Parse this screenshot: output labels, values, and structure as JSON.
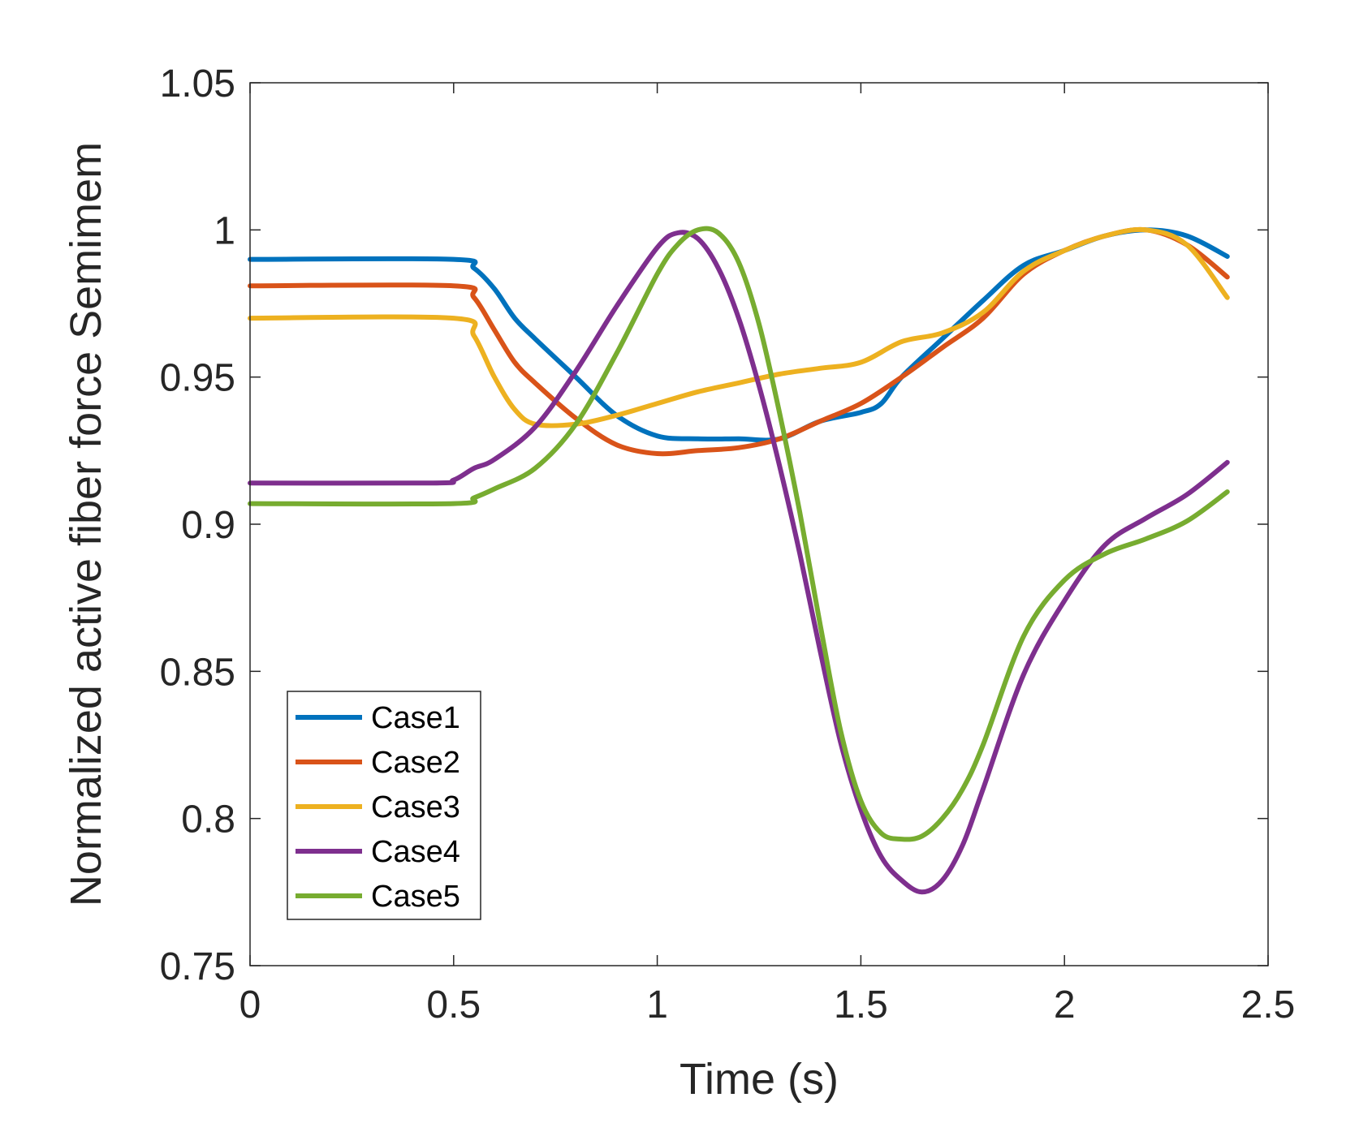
{
  "chart_data": {
    "type": "line",
    "title": "",
    "xlabel": "Time (s)",
    "ylabel": "Normalized active fiber force  Semimem",
    "xlim": [
      0,
      2.5
    ],
    "ylim": [
      0.75,
      1.05
    ],
    "xticks": [
      0,
      0.5,
      1,
      1.5,
      2,
      2.5
    ],
    "xtick_labels": [
      "0",
      "0.5",
      "1",
      "1.5",
      "2",
      "2.5"
    ],
    "yticks": [
      0.75,
      0.8,
      0.85,
      0.9,
      0.95,
      1,
      1.05
    ],
    "ytick_labels": [
      "0.75",
      "0.8",
      "0.85",
      "0.9",
      "0.95",
      "1",
      "1.05"
    ],
    "grid": false,
    "legend_position": "bottom-left",
    "series": [
      {
        "name": "Case1",
        "color": "#0072BD",
        "x": [
          0,
          0.5,
          0.55,
          0.6,
          0.65,
          0.7,
          0.8,
          0.9,
          1.0,
          1.1,
          1.2,
          1.3,
          1.4,
          1.5,
          1.55,
          1.6,
          1.7,
          1.8,
          1.9,
          2.0,
          2.1,
          2.2,
          2.3,
          2.4
        ],
        "y": [
          0.99,
          0.99,
          0.987,
          0.98,
          0.97,
          0.963,
          0.95,
          0.937,
          0.93,
          0.929,
          0.929,
          0.929,
          0.935,
          0.938,
          0.941,
          0.95,
          0.963,
          0.976,
          0.988,
          0.993,
          0.998,
          1.0,
          0.998,
          0.991
        ]
      },
      {
        "name": "Case2",
        "color": "#D95319",
        "x": [
          0,
          0.5,
          0.55,
          0.6,
          0.65,
          0.7,
          0.8,
          0.9,
          1.0,
          1.1,
          1.2,
          1.3,
          1.4,
          1.5,
          1.6,
          1.7,
          1.8,
          1.9,
          2.0,
          2.1,
          2.2,
          2.3,
          2.4
        ],
        "y": [
          0.981,
          0.981,
          0.977,
          0.966,
          0.955,
          0.948,
          0.936,
          0.927,
          0.924,
          0.925,
          0.926,
          0.929,
          0.935,
          0.941,
          0.95,
          0.96,
          0.97,
          0.985,
          0.993,
          0.998,
          1.0,
          0.995,
          0.984
        ]
      },
      {
        "name": "Case3",
        "color": "#EDB120",
        "x": [
          0,
          0.5,
          0.55,
          0.6,
          0.65,
          0.7,
          0.8,
          0.9,
          1.0,
          1.1,
          1.2,
          1.3,
          1.4,
          1.5,
          1.6,
          1.7,
          1.8,
          1.9,
          2.0,
          2.1,
          2.2,
          2.3,
          2.4
        ],
        "y": [
          0.97,
          0.97,
          0.964,
          0.95,
          0.939,
          0.934,
          0.934,
          0.937,
          0.941,
          0.945,
          0.948,
          0.951,
          0.953,
          0.955,
          0.962,
          0.965,
          0.972,
          0.986,
          0.993,
          0.998,
          1.0,
          0.995,
          0.977
        ]
      },
      {
        "name": "Case4",
        "color": "#7E2F8E",
        "x": [
          0,
          0.45,
          0.5,
          0.55,
          0.6,
          0.7,
          0.8,
          0.9,
          1.0,
          1.05,
          1.1,
          1.15,
          1.2,
          1.25,
          1.3,
          1.35,
          1.4,
          1.45,
          1.5,
          1.55,
          1.6,
          1.65,
          1.7,
          1.75,
          1.8,
          1.9,
          2.0,
          2.1,
          2.2,
          2.3,
          2.4
        ],
        "y": [
          0.914,
          0.914,
          0.915,
          0.919,
          0.922,
          0.933,
          0.952,
          0.974,
          0.994,
          0.999,
          0.997,
          0.987,
          0.97,
          0.947,
          0.92,
          0.89,
          0.857,
          0.826,
          0.803,
          0.787,
          0.779,
          0.775,
          0.779,
          0.791,
          0.81,
          0.849,
          0.874,
          0.893,
          0.902,
          0.91,
          0.921
        ]
      },
      {
        "name": "Case5",
        "color": "#77AC30",
        "x": [
          0,
          0.5,
          0.55,
          0.6,
          0.7,
          0.8,
          0.9,
          1.0,
          1.05,
          1.1,
          1.15,
          1.2,
          1.25,
          1.3,
          1.35,
          1.4,
          1.45,
          1.5,
          1.55,
          1.6,
          1.65,
          1.7,
          1.75,
          1.8,
          1.9,
          2.0,
          2.1,
          2.2,
          2.3,
          2.4
        ],
        "y": [
          0.907,
          0.907,
          0.909,
          0.912,
          0.919,
          0.934,
          0.958,
          0.985,
          0.995,
          1.0,
          0.999,
          0.989,
          0.968,
          0.938,
          0.904,
          0.866,
          0.83,
          0.806,
          0.795,
          0.793,
          0.794,
          0.8,
          0.81,
          0.825,
          0.862,
          0.881,
          0.89,
          0.895,
          0.901,
          0.911
        ]
      }
    ]
  }
}
